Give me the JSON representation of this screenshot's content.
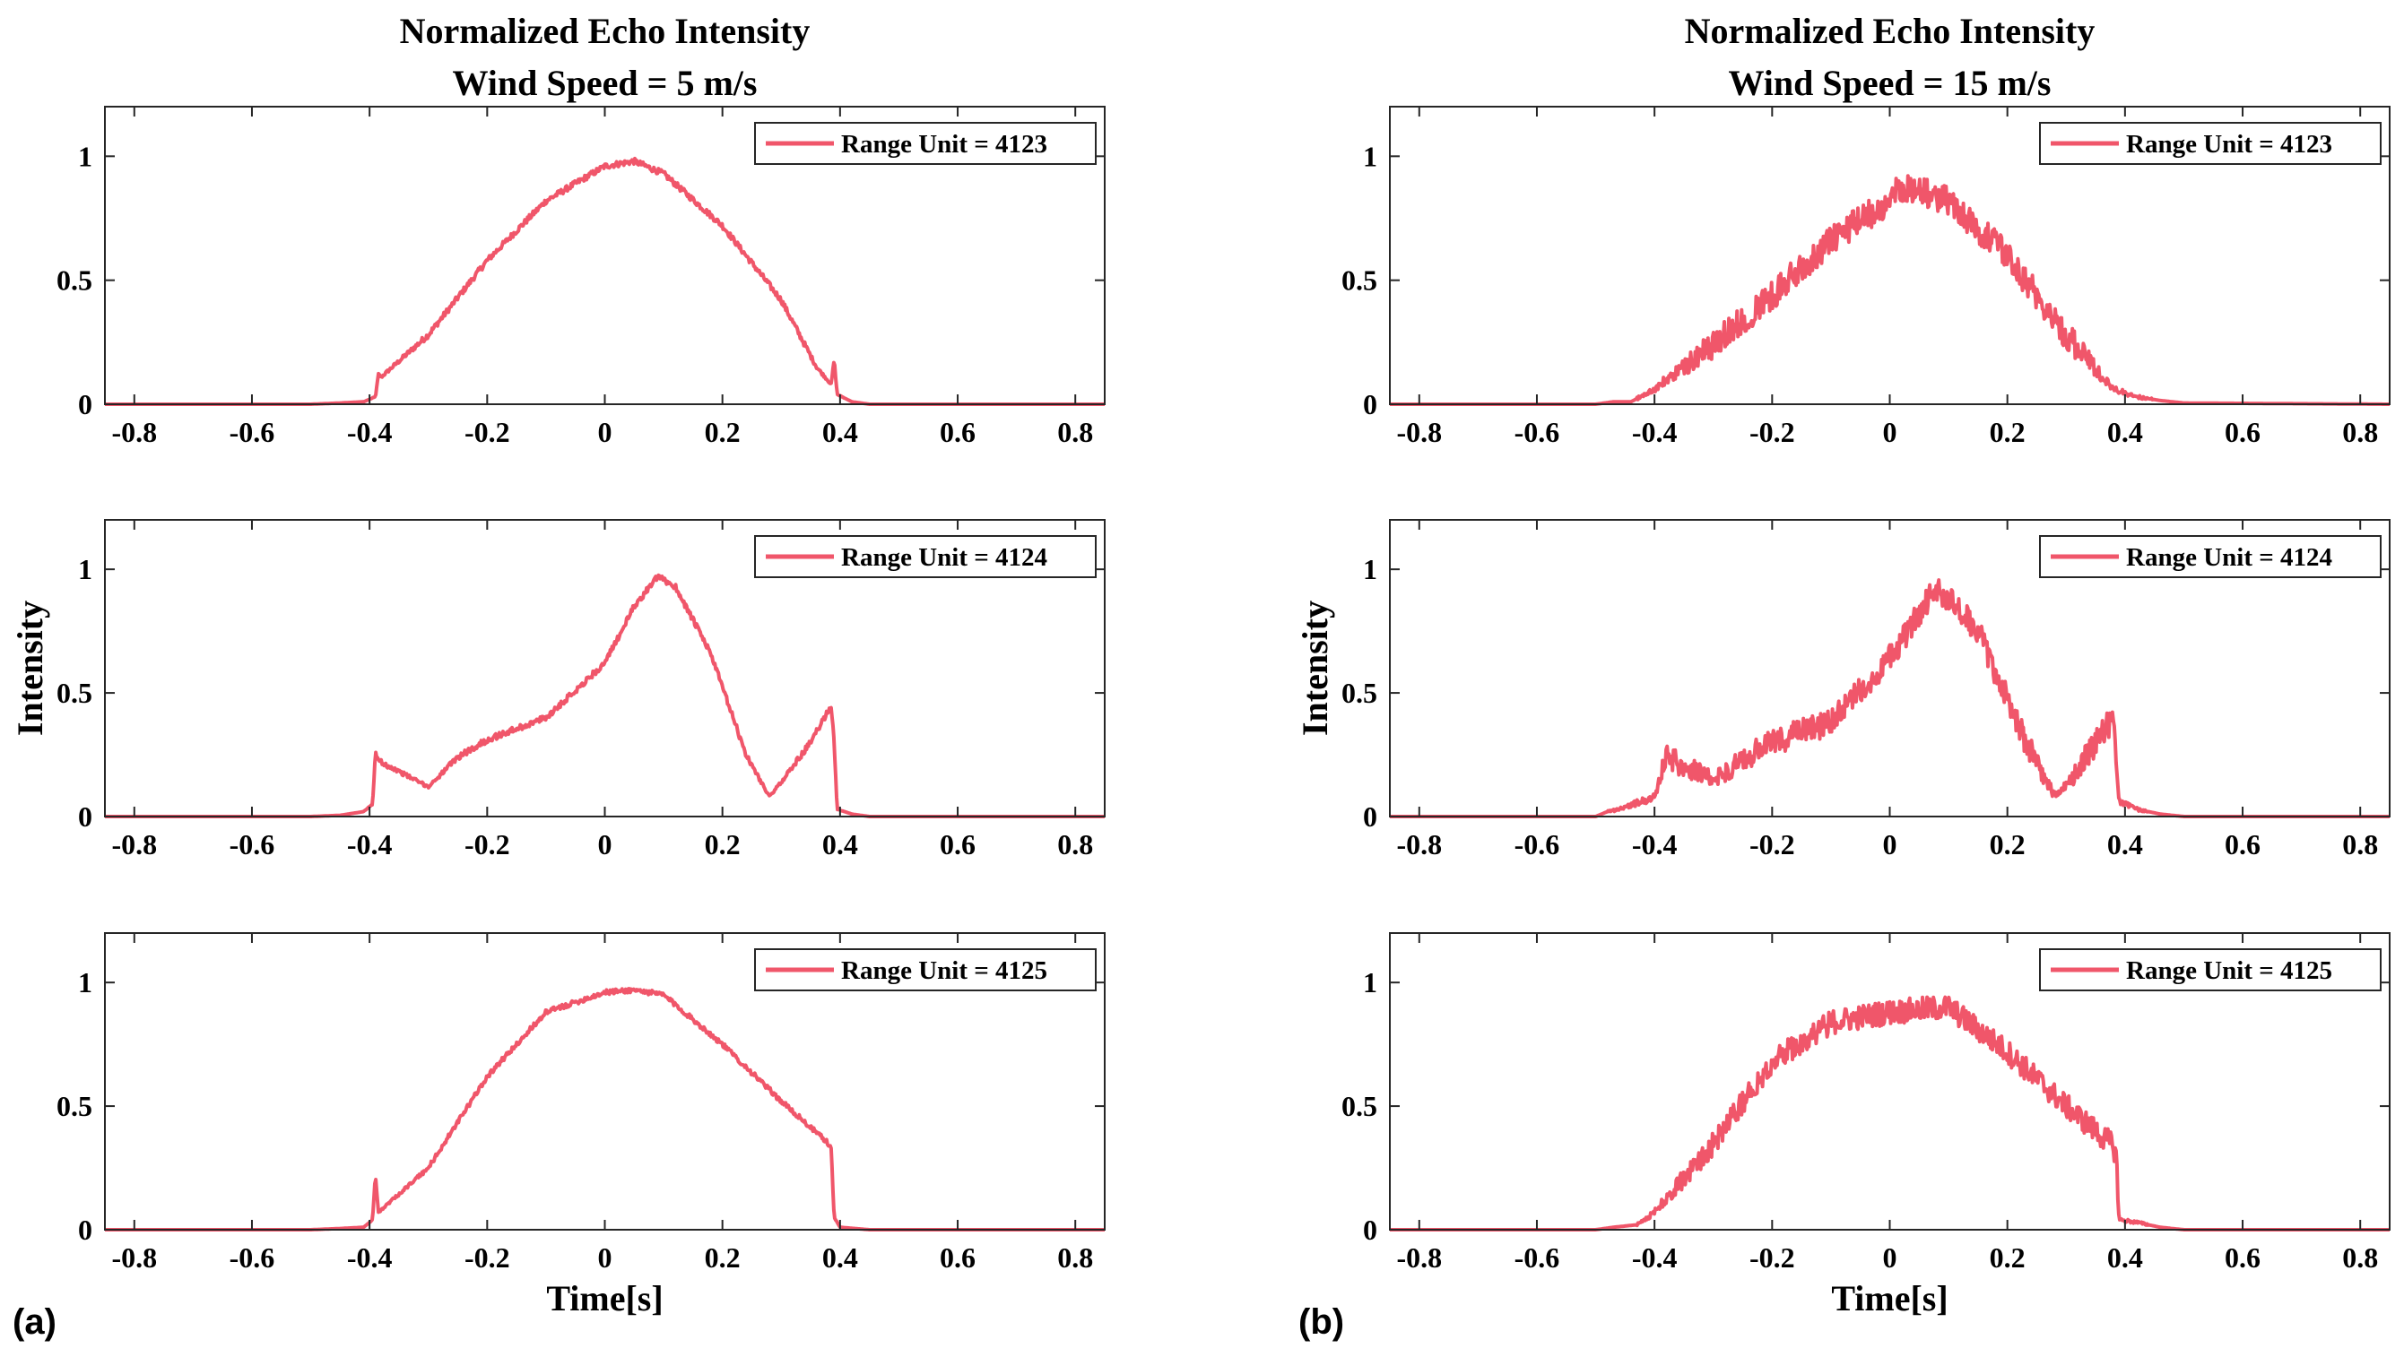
{
  "figure": {
    "panel_labels": [
      "(a)",
      "(b)"
    ],
    "line_color": "#f0566a"
  },
  "chart_data": [
    {
      "type": "line",
      "panel": "(a)",
      "row": 0,
      "title": [
        "Normalized Echo Intensity",
        "Wind Speed = 5 m/s"
      ],
      "xlabel": "",
      "ylabel": "",
      "xlim": [
        -0.85,
        0.85
      ],
      "ylim": [
        0,
        1.2
      ],
      "xticks": [
        -0.8,
        -0.6,
        -0.4,
        -0.2,
        0,
        0.2,
        0.4,
        0.6,
        0.8
      ],
      "xtick_labels": [
        "-0.8",
        "-0.6",
        "-0.4",
        "-0.2",
        "0",
        "0.2",
        "0.4",
        "0.6",
        "0.8"
      ],
      "yticks": [
        0,
        0.5,
        1
      ],
      "ytick_labels": [
        "0",
        "0.5",
        "1"
      ],
      "series": [
        {
          "name": "Range Unit = 4123",
          "noise": 0.012,
          "x": [
            -0.85,
            -0.5,
            -0.45,
            -0.41,
            -0.39,
            -0.385,
            -0.38,
            -0.3,
            -0.2,
            -0.1,
            0,
            0.05,
            0.1,
            0.2,
            0.3,
            0.36,
            0.385,
            0.39,
            0.395,
            0.42,
            0.45,
            0.85
          ],
          "y": [
            0,
            0,
            0.005,
            0.01,
            0.03,
            0.12,
            0.11,
            0.28,
            0.58,
            0.82,
            0.96,
            0.98,
            0.93,
            0.72,
            0.42,
            0.15,
            0.08,
            0.18,
            0.04,
            0.01,
            0,
            0
          ]
        }
      ]
    },
    {
      "type": "line",
      "panel": "(a)",
      "row": 1,
      "title": [],
      "xlabel": "",
      "ylabel": "Intensity",
      "xlim": [
        -0.85,
        0.85
      ],
      "ylim": [
        0,
        1.2
      ],
      "xticks": [
        -0.8,
        -0.6,
        -0.4,
        -0.2,
        0,
        0.2,
        0.4,
        0.6,
        0.8
      ],
      "xtick_labels": [
        "-0.8",
        "-0.6",
        "-0.4",
        "-0.2",
        "0",
        "0.2",
        "0.4",
        "0.6",
        "0.8"
      ],
      "yticks": [
        0,
        0.5,
        1
      ],
      "ytick_labels": [
        "0",
        "0.5",
        "1"
      ],
      "series": [
        {
          "name": "Range Unit = 4124",
          "noise": 0.012,
          "x": [
            -0.85,
            -0.5,
            -0.45,
            -0.41,
            -0.395,
            -0.39,
            -0.38,
            -0.34,
            -0.3,
            -0.25,
            -0.2,
            -0.1,
            0,
            0.05,
            0.09,
            0.12,
            0.18,
            0.24,
            0.28,
            0.3,
            0.35,
            0.385,
            0.39,
            0.395,
            0.42,
            0.45,
            0.85
          ],
          "y": [
            0,
            0,
            0.005,
            0.02,
            0.05,
            0.25,
            0.22,
            0.17,
            0.12,
            0.24,
            0.31,
            0.4,
            0.62,
            0.85,
            0.97,
            0.93,
            0.66,
            0.25,
            0.08,
            0.14,
            0.3,
            0.45,
            0.3,
            0.03,
            0.01,
            0,
            0
          ]
        }
      ]
    },
    {
      "type": "line",
      "panel": "(a)",
      "row": 2,
      "title": [],
      "xlabel": "Time[s]",
      "ylabel": "",
      "xlim": [
        -0.85,
        0.85
      ],
      "ylim": [
        0,
        1.2
      ],
      "xticks": [
        -0.8,
        -0.6,
        -0.4,
        -0.2,
        0,
        0.2,
        0.4,
        0.6,
        0.8
      ],
      "xtick_labels": [
        "-0.8",
        "-0.6",
        "-0.4",
        "-0.2",
        "0",
        "0.2",
        "0.4",
        "0.6",
        "0.8"
      ],
      "yticks": [
        0,
        0.5,
        1
      ],
      "ytick_labels": [
        "0",
        "0.5",
        "1"
      ],
      "series": [
        {
          "name": "Range Unit = 4125",
          "noise": 0.01,
          "x": [
            -0.85,
            -0.5,
            -0.45,
            -0.41,
            -0.395,
            -0.39,
            -0.385,
            -0.3,
            -0.2,
            -0.1,
            0,
            0.05,
            0.1,
            0.2,
            0.3,
            0.38,
            0.385,
            0.39,
            0.4,
            0.45,
            0.85
          ],
          "y": [
            0,
            0,
            0.005,
            0.01,
            0.04,
            0.22,
            0.07,
            0.25,
            0.62,
            0.88,
            0.96,
            0.97,
            0.95,
            0.75,
            0.52,
            0.35,
            0.32,
            0.05,
            0.01,
            0,
            0
          ]
        }
      ]
    },
    {
      "type": "line",
      "panel": "(b)",
      "row": 0,
      "title": [
        "Normalized Echo Intensity",
        "Wind Speed = 15 m/s"
      ],
      "xlabel": "",
      "ylabel": "",
      "xlim": [
        -0.85,
        0.85
      ],
      "ylim": [
        0,
        1.2
      ],
      "xticks": [
        -0.8,
        -0.6,
        -0.4,
        -0.2,
        0,
        0.2,
        0.4,
        0.6,
        0.8
      ],
      "xtick_labels": [
        "-0.8",
        "-0.6",
        "-0.4",
        "-0.2",
        "0",
        "0.2",
        "0.4",
        "0.6",
        "0.8"
      ],
      "yticks": [
        0,
        0.5,
        1
      ],
      "ytick_labels": [
        "0",
        "0.5",
        "1"
      ],
      "series": [
        {
          "name": "Range Unit = 4123",
          "noise": 0.06,
          "x": [
            -0.85,
            -0.5,
            -0.47,
            -0.44,
            -0.4,
            -0.3,
            -0.2,
            -0.1,
            0,
            0.02,
            0.1,
            0.2,
            0.3,
            0.38,
            0.42,
            0.46,
            0.5,
            0.85
          ],
          "y": [
            0,
            0,
            0.01,
            0.01,
            0.06,
            0.24,
            0.44,
            0.66,
            0.82,
            0.88,
            0.82,
            0.6,
            0.28,
            0.06,
            0.03,
            0.015,
            0.005,
            0
          ]
        }
      ]
    },
    {
      "type": "line",
      "panel": "(b)",
      "row": 1,
      "title": [],
      "xlabel": "",
      "ylabel": "Intensity",
      "xlim": [
        -0.85,
        0.85
      ],
      "ylim": [
        0,
        1.2
      ],
      "xticks": [
        -0.8,
        -0.6,
        -0.4,
        -0.2,
        0,
        0.2,
        0.4,
        0.6,
        0.8
      ],
      "xtick_labels": [
        "-0.8",
        "-0.6",
        "-0.4",
        "-0.2",
        "0",
        "0.2",
        "0.4",
        "0.6",
        "0.8"
      ],
      "yticks": [
        0,
        0.5,
        1
      ],
      "ytick_labels": [
        "0",
        "0.5",
        "1"
      ],
      "series": [
        {
          "name": "Range Unit = 4124",
          "noise": 0.055,
          "x": [
            -0.85,
            -0.5,
            -0.48,
            -0.46,
            -0.4,
            -0.38,
            -0.3,
            -0.2,
            -0.1,
            0,
            0.08,
            0.15,
            0.22,
            0.28,
            0.3,
            0.35,
            0.38,
            0.39,
            0.42,
            0.46,
            0.5,
            0.85
          ],
          "y": [
            0,
            0,
            0.02,
            0.03,
            0.08,
            0.24,
            0.15,
            0.3,
            0.38,
            0.64,
            0.93,
            0.75,
            0.36,
            0.08,
            0.12,
            0.3,
            0.4,
            0.06,
            0.03,
            0.01,
            0,
            0
          ]
        }
      ]
    },
    {
      "type": "line",
      "panel": "(b)",
      "row": 2,
      "title": [],
      "xlabel": "Time[s]",
      "ylabel": "",
      "xlim": [
        -0.85,
        0.85
      ],
      "ylim": [
        0,
        1.2
      ],
      "xticks": [
        -0.8,
        -0.6,
        -0.4,
        -0.2,
        0,
        0.2,
        0.4,
        0.6,
        0.8
      ],
      "xtick_labels": [
        "-0.8",
        "-0.6",
        "-0.4",
        "-0.2",
        "0",
        "0.2",
        "0.4",
        "0.6",
        "0.8"
      ],
      "yticks": [
        0,
        0.5,
        1
      ],
      "ytick_labels": [
        "0",
        "0.5",
        "1"
      ],
      "series": [
        {
          "name": "Range Unit = 4125",
          "noise": 0.05,
          "x": [
            -0.85,
            -0.5,
            -0.47,
            -0.43,
            -0.4,
            -0.3,
            -0.2,
            -0.1,
            0,
            0.1,
            0.2,
            0.3,
            0.38,
            0.385,
            0.39,
            0.42,
            0.46,
            0.5,
            0.85
          ],
          "y": [
            0,
            0,
            0.01,
            0.02,
            0.07,
            0.35,
            0.68,
            0.84,
            0.88,
            0.9,
            0.72,
            0.5,
            0.34,
            0.3,
            0.04,
            0.03,
            0.01,
            0,
            0
          ]
        }
      ]
    }
  ]
}
